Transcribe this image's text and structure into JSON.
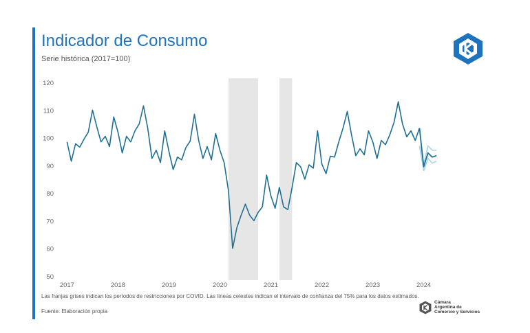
{
  "header": {
    "title": "Indicador de Consumo",
    "subtitle": "Serie histórica (2017=100)"
  },
  "footer": {
    "note": "Las franjas grises indican los períodos de restricciones por COVID. Las líneas celestes indican el intervalo de confianza del 75% para los datos estimados.",
    "source": "Fuente: Elaboración propia"
  },
  "logo": {
    "name": "Cámara Argentina de Comercio y Servicios",
    "lines": [
      "Cámara",
      "Argentina de",
      "Comercio y Servicios"
    ]
  },
  "colors": {
    "accent": "#1e73be",
    "series": "#1f6f93",
    "confidence": "#a9d4ec",
    "shade": "#e6e6e6"
  },
  "chart_data": {
    "type": "line",
    "title": "Indicador de Consumo",
    "subtitle": "Serie histórica (2017=100)",
    "xlabel": "",
    "ylabel": "",
    "ylim": [
      50,
      120
    ],
    "yticks": [
      50,
      60,
      70,
      80,
      90,
      100,
      110,
      120
    ],
    "xlim": [
      2016.792,
      2024.667
    ],
    "xticks": [
      {
        "label": "2017",
        "x": 2017.0
      },
      {
        "label": "2018",
        "x": 2018.0
      },
      {
        "label": "2019",
        "x": 2019.0
      },
      {
        "label": "2020",
        "x": 2020.0
      },
      {
        "label": "2021",
        "x": 2021.0
      },
      {
        "label": "2022",
        "x": 2022.0
      },
      {
        "label": "2023",
        "x": 2023.0
      },
      {
        "label": "2024",
        "x": 2024.0
      }
    ],
    "grid": false,
    "shaded_periods": [
      {
        "from": 2020.167,
        "to": 2020.75
      },
      {
        "from": 2021.167,
        "to": 2021.417
      }
    ],
    "series": [
      {
        "name": "Indicador de Consumo",
        "start": 2017.0,
        "step": 0.08333,
        "values": [
          98.5,
          91.5,
          97.8,
          96.6,
          99.5,
          102,
          110,
          104,
          98.5,
          100.5,
          96.8,
          107.5,
          102,
          94.5,
          100.5,
          98.5,
          102.5,
          105,
          111.5,
          103.5,
          92.5,
          95.5,
          91,
          102.5,
          95,
          88.5,
          93,
          92,
          96.5,
          98.8,
          108.5,
          99,
          92.5,
          96.8,
          92,
          101.5,
          95.5,
          91,
          81,
          60,
          67.5,
          72,
          76,
          72,
          70,
          73,
          75,
          86.5,
          79,
          74.5,
          82,
          75,
          74,
          82,
          91,
          89.5,
          85,
          90.2,
          89,
          102.5,
          90.5,
          87,
          93.3,
          93,
          98.5,
          103.5,
          109.5,
          101,
          93.5,
          96,
          93.8,
          102.5,
          98.5,
          92.5,
          99,
          97.5,
          101,
          105.5,
          113,
          105,
          100.3,
          102.5,
          99,
          103.5
        ],
        "estimated_values": [
          97,
          89.5,
          94.5,
          93,
          93.5
        ]
      }
    ],
    "confidence_interval": {
      "level": "75%",
      "start": 2023.917,
      "step": 0.08333,
      "upper": [
        97,
        90.5,
        97,
        95.5,
        95.5
      ],
      "lower": [
        97,
        88,
        92.5,
        90.8,
        91.5
      ]
    }
  }
}
